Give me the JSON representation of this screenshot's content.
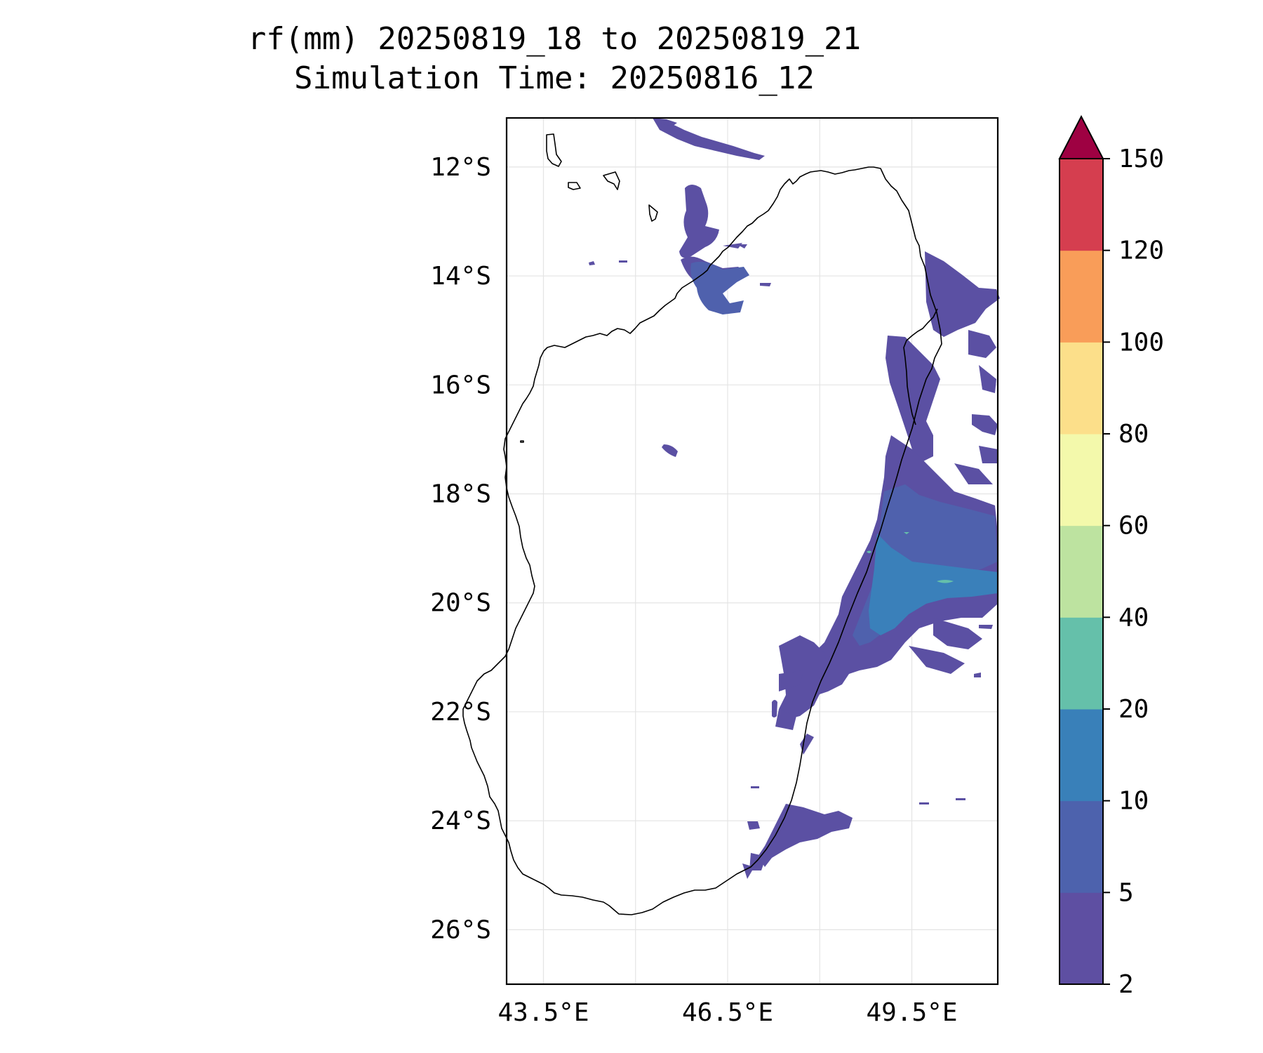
{
  "title": {
    "line1": "rf(mm) 20250819_18 to 20250819_21",
    "line2": "Simulation Time: 20250816_12"
  },
  "map": {
    "lat_labels": [
      "12°S",
      "14°S",
      "16°S",
      "18°S",
      "20°S",
      "22°S",
      "24°S",
      "26°S"
    ],
    "lat_values": [
      -12,
      -14,
      -16,
      -18,
      -20,
      -22,
      -24,
      -26
    ],
    "lon_labels": [
      "43.5°E",
      "46.5°E",
      "49.5°E"
    ],
    "lon_values": [
      43.5,
      46.5,
      49.5
    ],
    "lon_range": [
      42.9,
      50.9
    ],
    "lat_range": [
      -27.0,
      -11.1
    ],
    "grid": true
  },
  "colorbar": {
    "levels": [
      "2",
      "5",
      "10",
      "20",
      "40",
      "60",
      "80",
      "100",
      "120",
      "150"
    ],
    "colors": [
      "#5e4fa2",
      "#4d62ad",
      "#3980b9",
      "#65c0aa",
      "#bde3a0",
      "#f3f9ab",
      "#fcdf8a",
      "#f99d59",
      "#d53e4f",
      "#9e0142"
    ],
    "extend": "max"
  },
  "colors": {
    "rain_2_5": "#5b50a3",
    "rain_5_10": "#4f61ad",
    "rain_10_20": "#3a80ba",
    "rain_20_40": "#65bfab"
  }
}
